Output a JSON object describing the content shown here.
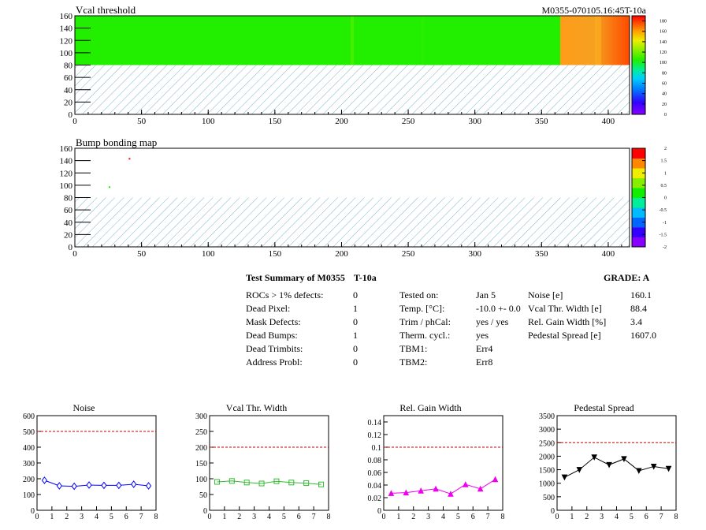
{
  "module_id": "M0355-070105.16:45T-10a",
  "chart_data": [
    {
      "type": "heatmap",
      "title": "Vcal threshold",
      "xlim": [
        0,
        416
      ],
      "ylim": [
        0,
        160
      ],
      "x_ticks": [
        0,
        50,
        100,
        150,
        200,
        250,
        300,
        350,
        400
      ],
      "y_ticks": [
        0,
        20,
        40,
        60,
        80,
        100,
        120,
        140,
        160
      ],
      "color_scale_ticks": [
        0,
        20,
        40,
        60,
        80,
        100,
        120,
        140,
        160,
        180
      ],
      "filled_region_y": [
        80,
        160
      ],
      "regions": [
        {
          "x_range": [
            0,
            208
          ],
          "value": 105
        },
        {
          "x_range": [
            208,
            364
          ],
          "value": 105
        },
        {
          "x_range": [
            364,
            416
          ],
          "value": 150
        }
      ],
      "empty_region": "hatched"
    },
    {
      "type": "heatmap",
      "title": "Bump bonding map",
      "xlim": [
        0,
        416
      ],
      "ylim": [
        0,
        160
      ],
      "x_ticks": [
        0,
        50,
        100,
        150,
        200,
        250,
        300,
        350,
        400
      ],
      "y_ticks": [
        0,
        20,
        40,
        60,
        80,
        100,
        120,
        140,
        160
      ],
      "color_scale_ticks": [
        "-2",
        "-1.5",
        "-1",
        "-0.5",
        "0",
        "0.5",
        "1",
        "1.5",
        "2"
      ],
      "points": [
        {
          "x": 41,
          "y": 143,
          "value": 2
        },
        {
          "x": 26,
          "y": 97,
          "value": 0
        }
      ],
      "empty_region": "hatched"
    },
    {
      "type": "line",
      "title": "Noise",
      "x": [
        0.5,
        1.5,
        2.5,
        3.5,
        4.5,
        5.5,
        6.5,
        7.5
      ],
      "values": [
        190,
        155,
        152,
        160,
        158,
        158,
        165,
        155
      ],
      "xlim": [
        0,
        8
      ],
      "ylim": [
        0,
        600
      ],
      "y_ticks": [
        0,
        100,
        200,
        300,
        400,
        500,
        600
      ],
      "x_ticks": [
        0,
        1,
        2,
        3,
        4,
        5,
        6,
        7,
        8
      ],
      "threshold": 500,
      "color": "#0000ff",
      "marker": "diamond"
    },
    {
      "type": "line",
      "title": "Vcal Thr. Width",
      "x": [
        0.5,
        1.5,
        2.5,
        3.5,
        4.5,
        5.5,
        6.5,
        7.5
      ],
      "values": [
        90,
        93,
        88,
        85,
        92,
        88,
        86,
        82
      ],
      "xlim": [
        0,
        8
      ],
      "ylim": [
        0,
        300
      ],
      "y_ticks": [
        0,
        50,
        100,
        150,
        200,
        250,
        300
      ],
      "x_ticks": [
        0,
        1,
        2,
        3,
        4,
        5,
        6,
        7,
        8
      ],
      "threshold": 200,
      "color": "#33bb33",
      "marker": "square"
    },
    {
      "type": "line",
      "title": "Rel. Gain Width",
      "x": [
        0.5,
        1.5,
        2.5,
        3.5,
        4.5,
        5.5,
        6.5,
        7.5
      ],
      "values": [
        0.027,
        0.028,
        0.031,
        0.034,
        0.026,
        0.041,
        0.034,
        0.049
      ],
      "xlim": [
        0,
        8
      ],
      "ylim": [
        0,
        0.15
      ],
      "y_ticks": [
        "0",
        "0.02",
        "0.04",
        "0.06",
        "0.08",
        "0.1",
        "0.12",
        "0.14"
      ],
      "x_ticks": [
        0,
        1,
        2,
        3,
        4,
        5,
        6,
        7,
        8
      ],
      "threshold": 0.1,
      "color": "#ee00ee",
      "marker": "triangle-up"
    },
    {
      "type": "line",
      "title": "Pedestal Spread",
      "x": [
        0.5,
        1.5,
        2.5,
        3.5,
        4.5,
        5.5,
        6.5,
        7.5
      ],
      "values": [
        1220,
        1500,
        1960,
        1680,
        1900,
        1460,
        1620,
        1540
      ],
      "xlim": [
        0,
        8
      ],
      "ylim": [
        0,
        3500
      ],
      "y_ticks": [
        0,
        500,
        1000,
        1500,
        2000,
        2500,
        3000,
        3500
      ],
      "x_ticks": [
        0,
        1,
        2,
        3,
        4,
        5,
        6,
        7,
        8
      ],
      "threshold": 2500,
      "color": "#000000",
      "marker": "triangle-down"
    }
  ],
  "summary": {
    "title": "Test Summary of M0355",
    "temp_label": "T-10a",
    "grade": "GRADE:  A",
    "defects": [
      {
        "label": "ROCs > 1% defects:",
        "value": "0"
      },
      {
        "label": "Dead Pixel:",
        "value": "1"
      },
      {
        "label": "Mask Defects:",
        "value": "0"
      },
      {
        "label": "Dead Bumps:",
        "value": "1"
      },
      {
        "label": "Dead Trimbits:",
        "value": "0"
      },
      {
        "label": "Address Probl:",
        "value": "0"
      }
    ],
    "conditions": [
      {
        "label": "Tested on:",
        "value": "Jan 5"
      },
      {
        "label": "Temp. [°C]:",
        "value": "-10.0 +- 0.0"
      },
      {
        "label": "Trim / phCal:",
        "value": "yes / yes"
      },
      {
        "label": "Therm. cycl.:",
        "value": "yes"
      },
      {
        "label": "TBM1:",
        "value": "Err4"
      },
      {
        "label": "TBM2:",
        "value": "Err8"
      }
    ],
    "metrics": [
      {
        "label": "Noise [e]",
        "value": "160.1"
      },
      {
        "label": "Vcal Thr. Width [e]",
        "value": "88.4"
      },
      {
        "label": "Rel. Gain Width [%]",
        "value": "3.4"
      },
      {
        "label": "Pedestal Spread [e]",
        "value": "1607.0"
      }
    ]
  }
}
